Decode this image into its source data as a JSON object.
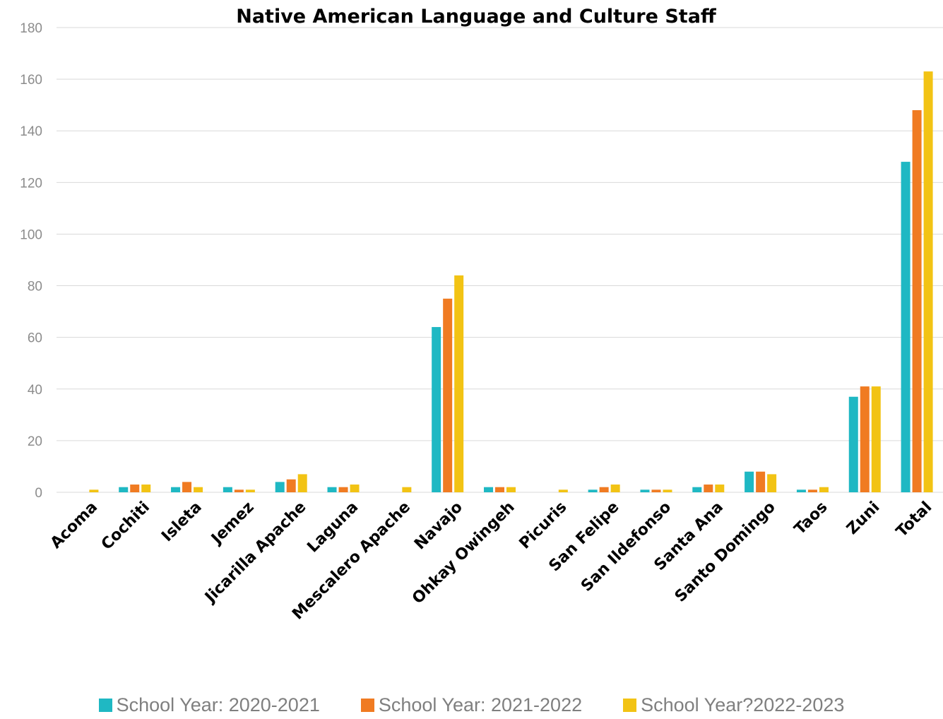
{
  "chart_data": {
    "type": "bar",
    "title": "Native American Language and Culture Staff",
    "xlabel": "",
    "ylabel": "",
    "ylim": [
      0,
      180
    ],
    "yticks": [
      0,
      20,
      40,
      60,
      80,
      100,
      120,
      140,
      160,
      180
    ],
    "grid": true,
    "legend_position": "bottom",
    "categories": [
      "Acoma",
      "Cochiti",
      "Isleta",
      "Jemez",
      "Jicarilla Apache",
      "Laguna",
      "Mescalero Apache",
      "Navajo",
      "Ohkay Owingeh",
      "Picuris",
      "San Felipe",
      "San Ildefonso",
      "Santa Ana",
      "Santo Domingo",
      "Taos",
      "Zuni",
      "Total"
    ],
    "series": [
      {
        "name": "School Year: 2020-2021",
        "color": "#1FB8C3",
        "values": [
          0,
          2,
          2,
          2,
          4,
          2,
          0,
          64,
          2,
          0,
          1,
          1,
          2,
          8,
          1,
          37,
          128
        ]
      },
      {
        "name": "School Year: 2021-2022",
        "color": "#F07B22",
        "values": [
          0,
          3,
          4,
          1,
          5,
          2,
          0,
          75,
          2,
          0,
          2,
          1,
          3,
          8,
          1,
          41,
          148
        ]
      },
      {
        "name": "School Year?2022-2023",
        "color": "#F2C314",
        "values": [
          1,
          3,
          2,
          1,
          7,
          3,
          2,
          84,
          2,
          1,
          3,
          1,
          3,
          7,
          2,
          41,
          163
        ]
      }
    ]
  }
}
